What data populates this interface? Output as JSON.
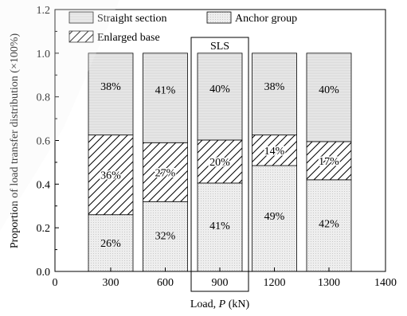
{
  "chart_data": {
    "type": "bar",
    "stacked": true,
    "xlabel_prefix": "Load, ",
    "xlabel_var": "P",
    "xlabel_suffix": " (kN)",
    "ylabel": "Proportion of load transfer distribution (×100%)",
    "x_ticks": [
      0,
      300,
      600,
      900,
      1200,
      1300,
      1400
    ],
    "x_tick_labels": [
      "0",
      "300",
      "600",
      "900",
      "1200",
      "1300",
      "1400"
    ],
    "y_ticks": [
      0.0,
      0.2,
      0.4,
      0.6,
      0.8,
      1.0,
      1.2
    ],
    "y_tick_labels": [
      "0.0",
      "0.2",
      "0.4",
      "0.6",
      "0.8",
      "1.0",
      "1.2"
    ],
    "ylim": [
      0,
      1.2
    ],
    "categories": [
      "300",
      "600",
      "900",
      "1200",
      "1300"
    ],
    "series": [
      {
        "name": "Anchor group",
        "values": [
          0.26,
          0.32,
          0.405,
          0.485,
          0.42
        ],
        "labels": [
          "26%",
          "32%",
          "41%",
          "49%",
          "42%"
        ],
        "pattern": "dots"
      },
      {
        "name": "Enlarged base",
        "values": [
          0.365,
          0.27,
          0.197,
          0.14,
          0.175
        ],
        "labels": [
          "36%",
          "27%",
          "20%",
          "14%",
          "17%"
        ],
        "pattern": "hatch"
      },
      {
        "name": "Straight section",
        "values": [
          0.375,
          0.41,
          0.398,
          0.375,
          0.405
        ],
        "labels": [
          "38%",
          "41%",
          "40%",
          "38%",
          "40%"
        ],
        "pattern": "lines"
      }
    ],
    "legend": [
      "Straight section",
      "Anchor group",
      "Enlarged base"
    ],
    "legend_position": "top-left",
    "highlight": {
      "category": "900",
      "label": "SLS"
    },
    "grid": false,
    "colors": {
      "axis": "#000000",
      "fill": "#e8e8e8"
    }
  }
}
